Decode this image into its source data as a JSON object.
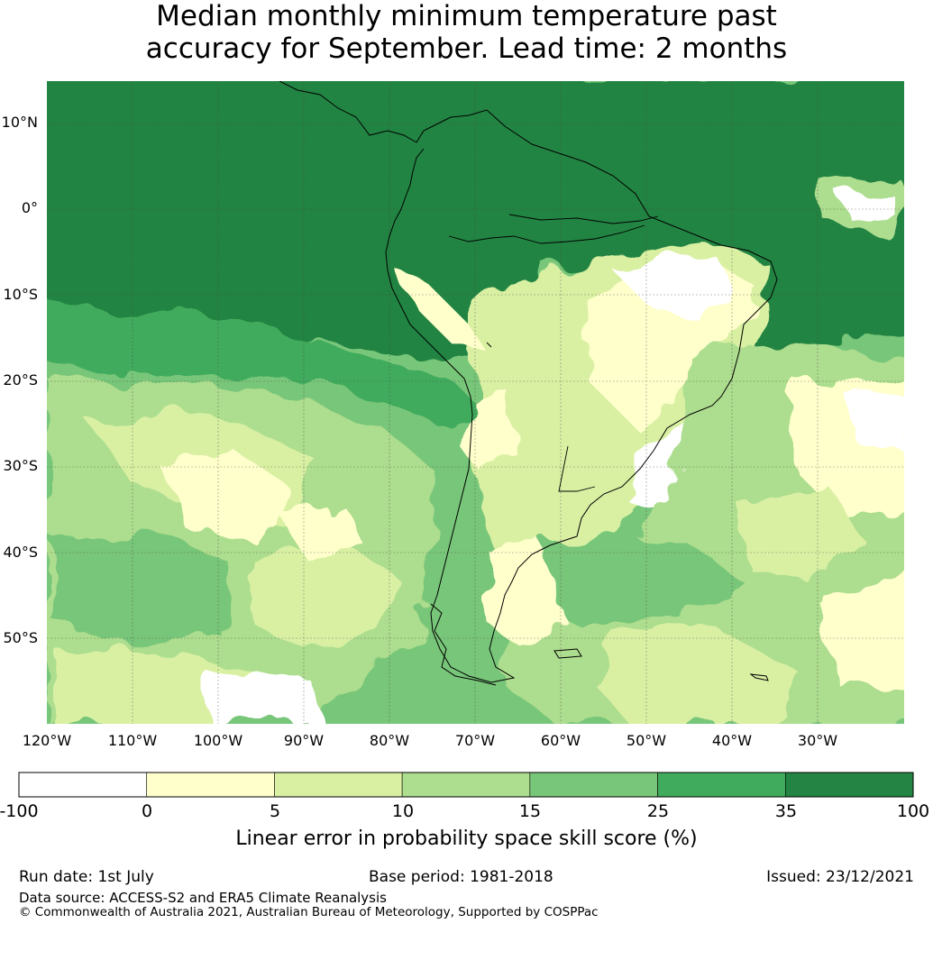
{
  "title_line1": "Median monthly minimum temperature past",
  "title_line2": "accuracy for September. Lead time: 2 months",
  "lat_labels": [
    "10°N",
    "0°",
    "10°S",
    "20°S",
    "30°S",
    "40°S",
    "50°S"
  ],
  "lon_labels": [
    "120°W",
    "110°W",
    "100°W",
    "90°W",
    "80°W",
    "70°W",
    "60°W",
    "50°W",
    "40°W",
    "30°W"
  ],
  "colorbar": {
    "ticks": [
      "-100",
      "0",
      "5",
      "10",
      "15",
      "25",
      "35",
      "100"
    ],
    "colors": [
      "#ffffff",
      "#ffffcc",
      "#d9f0a3",
      "#addd8e",
      "#78c679",
      "#41ab5d",
      "#238443"
    ],
    "label": "Linear error in probability space skill score (%)"
  },
  "footer": {
    "run_date": "Run date: 1st July",
    "base_period": "Base period: 1981-2018",
    "issued": "Issued: 23/12/2021",
    "data_source": "Data source: ACCESS-S2 and ERA5 Climate Reanalysis",
    "copyright": "© Commonwealth of Australia 2021, Australian Bureau of Meteorology, Supported by COSPPac"
  }
}
